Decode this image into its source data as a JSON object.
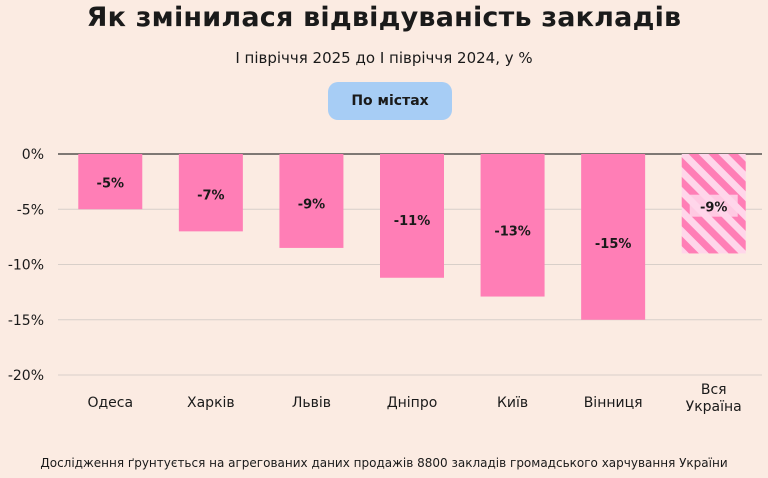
{
  "header": {
    "title": "Як змінилася відвідуваність закладів",
    "subtitle": "I півріччя 2025 до I півріччя 2024, у %",
    "filter_button": "По містах"
  },
  "footnote": "Дослідження ґрунтується на агрегованих даних продажів 8800 закладів громадського харчування України",
  "colors": {
    "background": "#fbebe2",
    "bar": "#ff7eb6",
    "stripe_light": "#ffd6ea",
    "pill": "#a7cdf5",
    "grid": "#d8cfc9",
    "axis": "#333333"
  },
  "chart_data": {
    "type": "bar",
    "categories": [
      "Одеса",
      "Харків",
      "Львів",
      "Дніпро",
      "Київ",
      "Вінниця",
      "Вся Україна"
    ],
    "values": [
      -5,
      -7,
      -8.5,
      -11.2,
      -12.9,
      -15,
      -9
    ],
    "data_labels": [
      "-5%",
      "-7%",
      "-9%",
      "-11%",
      "-13%",
      "-15%",
      "-9%"
    ],
    "patterned": [
      false,
      false,
      false,
      false,
      false,
      false,
      true
    ],
    "ylim": [
      -20,
      0
    ],
    "yticks": [
      0,
      -5,
      -10,
      -15,
      -20
    ],
    "ytick_labels": [
      "0%",
      "-5%",
      "-10%",
      "-15%",
      "-20%"
    ],
    "grid": true,
    "title": "",
    "xlabel": "",
    "ylabel": ""
  }
}
